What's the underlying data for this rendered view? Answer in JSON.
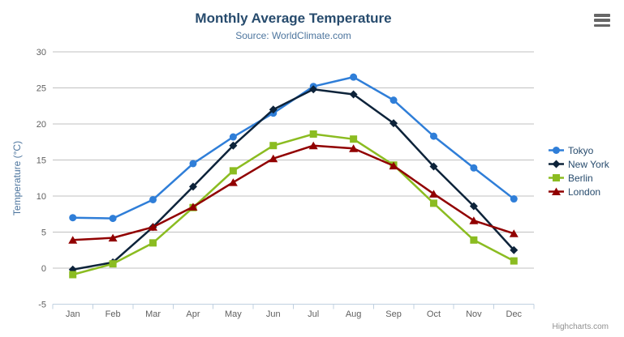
{
  "chart_data": {
    "type": "line",
    "title": "Monthly Average Temperature",
    "subtitle": "Source: WorldClimate.com",
    "ylabel": "Temperature (°C)",
    "xlabel": "",
    "ylim": [
      -5,
      30
    ],
    "yticks": [
      -5,
      0,
      5,
      10,
      15,
      20,
      25,
      30
    ],
    "grid": true,
    "legend_position": "right",
    "categories": [
      "Jan",
      "Feb",
      "Mar",
      "Apr",
      "May",
      "Jun",
      "Jul",
      "Aug",
      "Sep",
      "Oct",
      "Nov",
      "Dec"
    ],
    "series": [
      {
        "name": "Tokyo",
        "color": "#2f7ed8",
        "marker": "circle",
        "values": [
          7.0,
          6.9,
          9.5,
          14.5,
          18.2,
          21.5,
          25.2,
          26.5,
          23.3,
          18.3,
          13.9,
          9.6
        ]
      },
      {
        "name": "New York",
        "color": "#0d233a",
        "marker": "diamond",
        "values": [
          -0.2,
          0.8,
          5.7,
          11.3,
          17.0,
          22.0,
          24.8,
          24.1,
          20.1,
          14.1,
          8.6,
          2.5
        ]
      },
      {
        "name": "Berlin",
        "color": "#8bbc21",
        "marker": "square",
        "values": [
          -0.9,
          0.6,
          3.5,
          8.4,
          13.5,
          17.0,
          18.6,
          17.9,
          14.3,
          9.0,
          3.9,
          1.0
        ]
      },
      {
        "name": "London",
        "color": "#910000",
        "marker": "triangle",
        "values": [
          3.9,
          4.2,
          5.7,
          8.5,
          11.9,
          15.2,
          17.0,
          16.6,
          14.2,
          10.3,
          6.6,
          4.8
        ]
      }
    ]
  },
  "export_menu": {
    "icon": "hamburger-menu-icon"
  },
  "credit": {
    "label": "Highcharts.com"
  },
  "theme": {
    "background": "#ffffff",
    "title_color": "#274b6d",
    "subtitle_color": "#4d759e",
    "axis_label_color": "#606060",
    "axis_title_color": "#4d759e",
    "grid_color": "#c0c0c0",
    "axis_line_color": "#c0d0e0",
    "legend_text_color": "#274b6d",
    "menu_icon_color": "#666666",
    "credit_color": "#909090"
  }
}
